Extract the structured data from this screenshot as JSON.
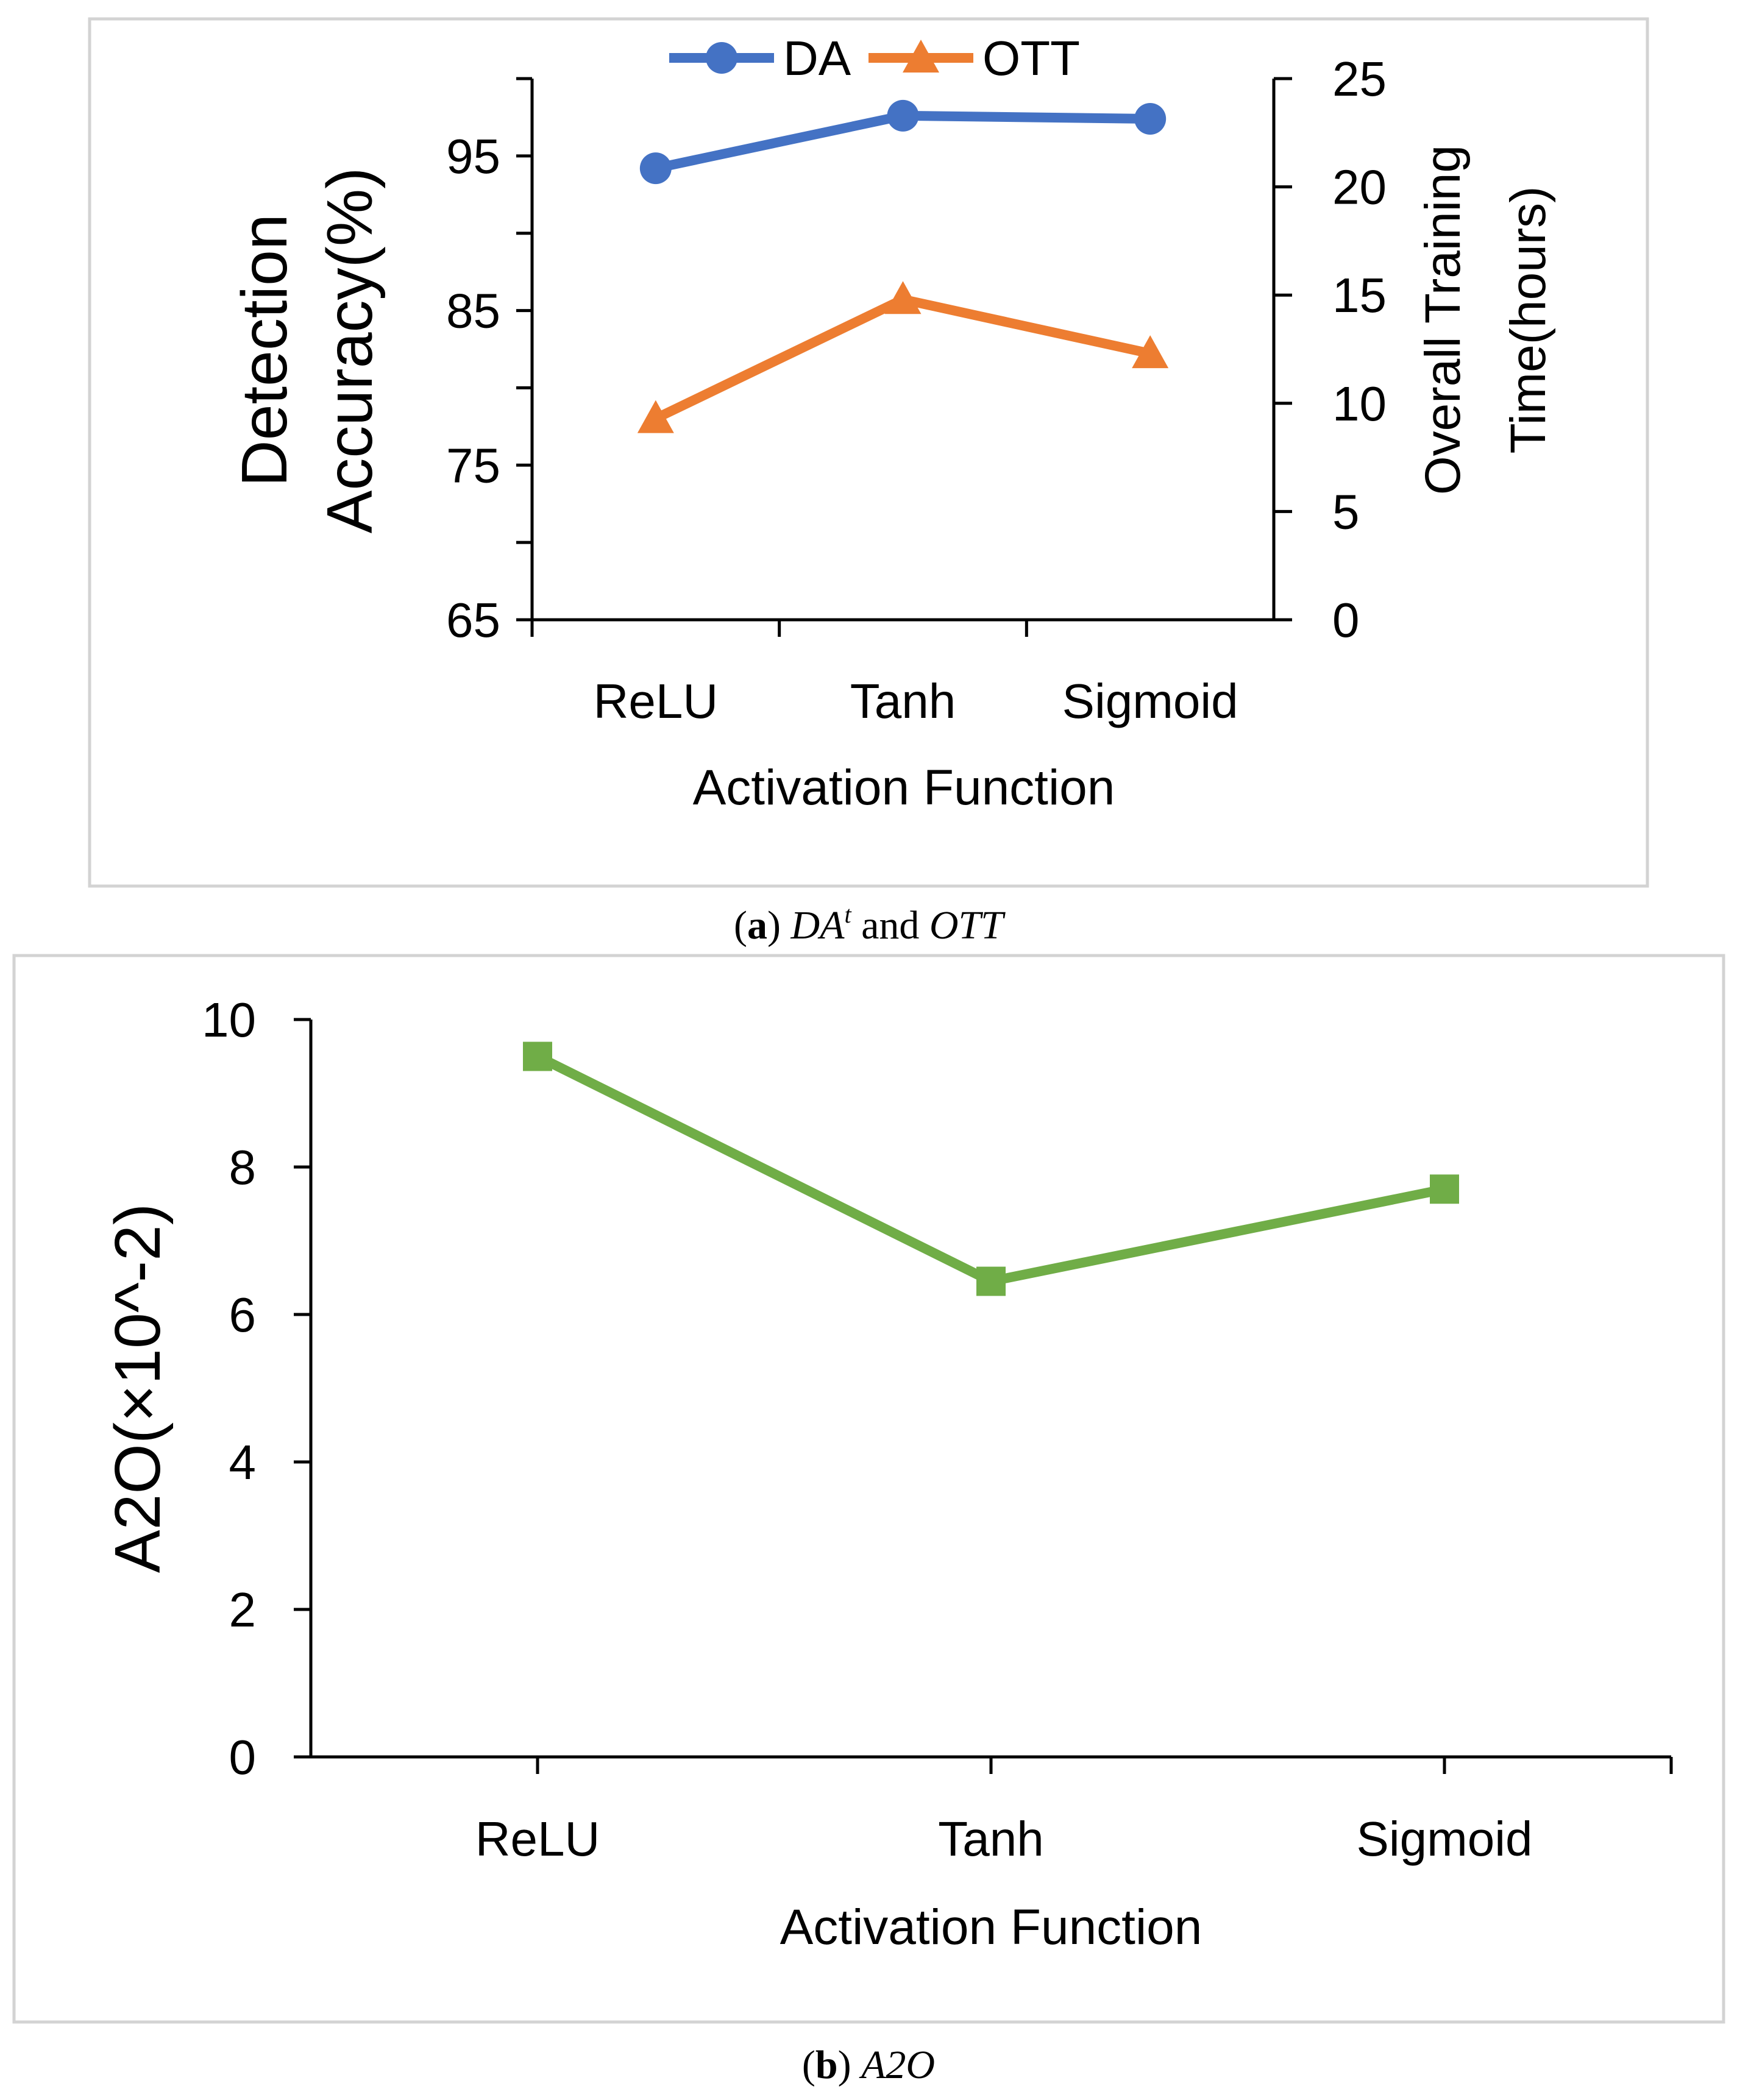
{
  "chart_data": [
    {
      "type": "line",
      "panel": "a",
      "caption": {
        "label": "a",
        "text_italic": "DA",
        "superscript": "t",
        "conjunction": " and ",
        "text_italic_2": "OTT"
      },
      "categories": [
        "ReLU",
        "Tanh",
        "Sigmoid"
      ],
      "xlabel": "Activation Function",
      "ylabel_left": [
        "Detection",
        "Accuracy(%)"
      ],
      "ylabel_right": [
        "Overall Training",
        "Time(hours)"
      ],
      "ylim_left": [
        65,
        100
      ],
      "ylim_right": [
        0,
        25
      ],
      "yticks_left": [
        65,
        75,
        85,
        95
      ],
      "yticks_right": [
        0,
        5,
        10,
        15,
        20,
        25
      ],
      "series": [
        {
          "name": "DA",
          "axis": "left",
          "values": [
            94.2,
            97.6,
            97.4
          ],
          "color": "#4472C4",
          "marker": "circle"
        },
        {
          "name": "OTT",
          "axis": "right",
          "values": [
            9.3,
            14.8,
            12.3
          ],
          "color": "#ED7D31",
          "marker": "triangle"
        }
      ],
      "legend": "top-center"
    },
    {
      "type": "line",
      "panel": "b",
      "caption": {
        "label": "b",
        "text_italic": "A2O"
      },
      "categories": [
        "ReLU",
        "Tanh",
        "Sigmoid"
      ],
      "xlabel": "Activation Function",
      "ylabel": "A2O(×10^-2)",
      "ylim": [
        0,
        10
      ],
      "yticks": [
        0,
        2,
        4,
        6,
        8,
        10
      ],
      "series": [
        {
          "name": "A2O",
          "values": [
            9.5,
            6.45,
            7.7
          ],
          "color": "#70AD47",
          "marker": "square"
        }
      ]
    }
  ]
}
